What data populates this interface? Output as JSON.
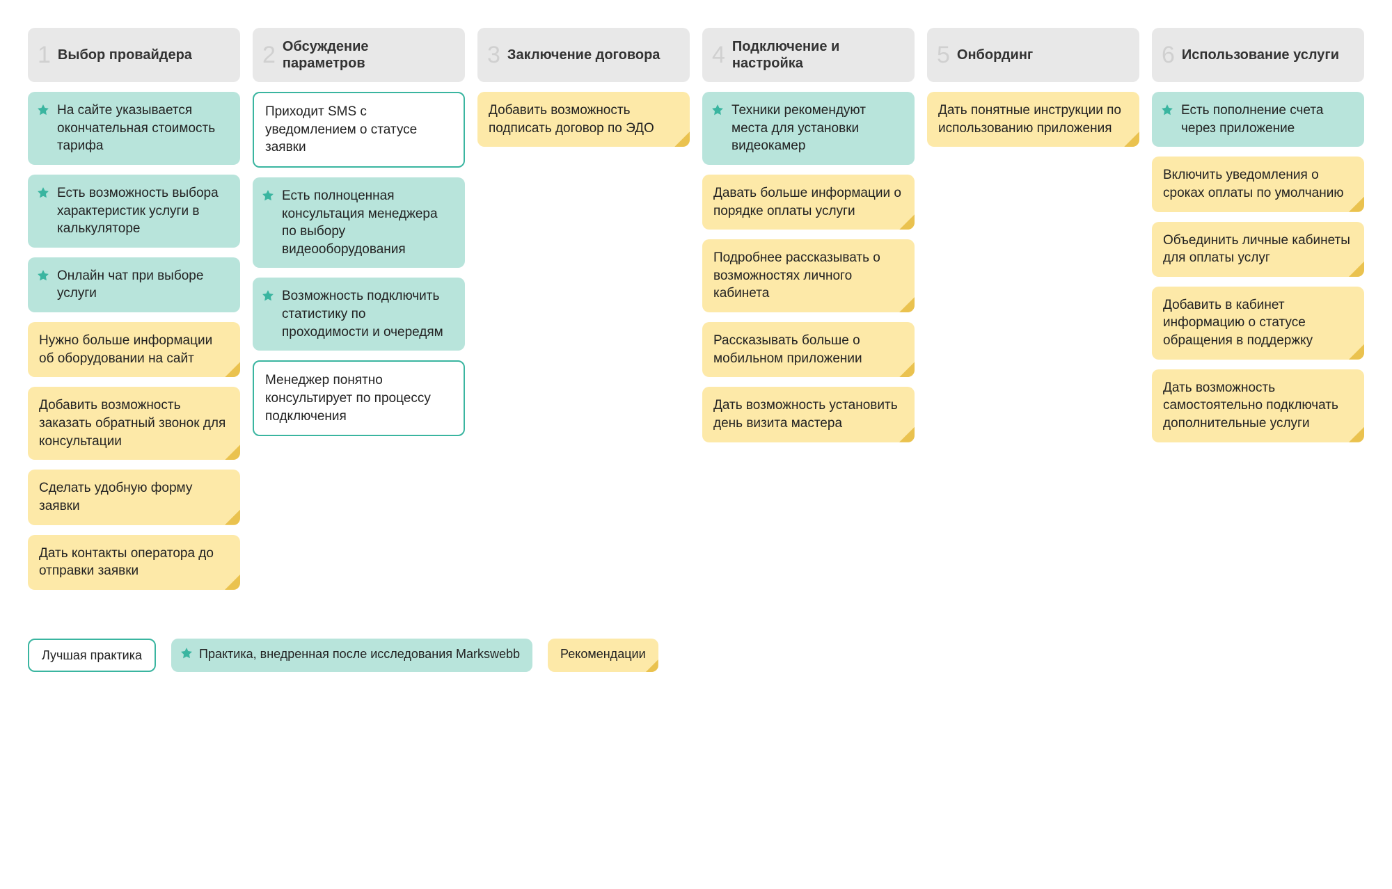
{
  "colors": {
    "header_bg": "#e8e8e8",
    "header_num": "#d0d0d0",
    "header_text": "#333333",
    "teal_bg": "#b8e4db",
    "teal_star": "#3ab5a0",
    "yellow_bg": "#fde9a8",
    "white_bg": "#ffffff",
    "teal_border": "#3ab5a0",
    "corner_fold": "#eac24f",
    "text": "#222222"
  },
  "card_types": {
    "teal": {
      "bg": "#b8e4db",
      "has_star": true,
      "border": null,
      "has_fold": false
    },
    "yellow": {
      "bg": "#fde9a8",
      "has_star": false,
      "border": null,
      "has_fold": true
    },
    "white": {
      "bg": "#ffffff",
      "has_star": false,
      "border": "#3ab5a0",
      "has_fold": false
    }
  },
  "columns": [
    {
      "num": "1",
      "title": "Выбор провайдера",
      "cards": [
        {
          "type": "teal",
          "text": "На сайте указывается окончательная стоимость тарифа"
        },
        {
          "type": "teal",
          "text": "Есть возможность выбора характеристик услуги в калькуляторе"
        },
        {
          "type": "teal",
          "text": "Онлайн чат при выборе услуги"
        },
        {
          "type": "yellow",
          "text": "Нужно больше информации об оборудовании на сайт"
        },
        {
          "type": "yellow",
          "text": "Добавить возможность заказать обратный звонок для консультации"
        },
        {
          "type": "yellow",
          "text": "Сделать удобную форму заявки"
        },
        {
          "type": "yellow",
          "text": "Дать контакты оператора до отправки заявки"
        }
      ]
    },
    {
      "num": "2",
      "title": "Обсуждение параметров",
      "cards": [
        {
          "type": "white",
          "text": "Приходит SMS с уведомлением о статусе заявки"
        },
        {
          "type": "teal",
          "text": "Есть полноценная консультация менеджера по выбору видеооборудования"
        },
        {
          "type": "teal",
          "text": "Возможность подключить статистику по проходимости и очередям"
        },
        {
          "type": "white",
          "text": "Менеджер понятно консультирует по процессу подключения"
        }
      ]
    },
    {
      "num": "3",
      "title": "Заключение договора",
      "cards": [
        {
          "type": "yellow",
          "text": "Добавить возможность подписать договор по ЭДО"
        }
      ]
    },
    {
      "num": "4",
      "title": "Подключение и настройка",
      "cards": [
        {
          "type": "teal",
          "text": "Техники рекомендуют места для установки видеокамер"
        },
        {
          "type": "yellow",
          "text": "Давать больше информации о порядке оплаты услуги"
        },
        {
          "type": "yellow",
          "text": "Подробнее рассказывать о возможностях личного кабинета"
        },
        {
          "type": "yellow",
          "text": "Рассказывать больше о мобильном приложении"
        },
        {
          "type": "yellow",
          "text": "Дать возможность установить день визита мастера"
        }
      ]
    },
    {
      "num": "5",
      "title": "Онбординг",
      "cards": [
        {
          "type": "yellow",
          "text": "Дать понятные инструкции по использованию приложения"
        }
      ]
    },
    {
      "num": "6",
      "title": "Использование услуги",
      "cards": [
        {
          "type": "teal",
          "text": "Есть пополнение счета через приложение"
        },
        {
          "type": "yellow",
          "text": "Включить уведомления о сроках оплаты по умолчанию"
        },
        {
          "type": "yellow",
          "text": "Объединить личные кабинеты для оплаты услуг"
        },
        {
          "type": "yellow",
          "text": "Добавить в кабинет информацию о статусе обращения в поддержку"
        },
        {
          "type": "yellow",
          "text": "Дать возможность самостоятельно подключать дополнительные услуги"
        }
      ]
    }
  ],
  "legend": [
    {
      "type": "white",
      "text": "Лучшая практика"
    },
    {
      "type": "teal",
      "text": "Практика, внедренная после исследования Markswebb"
    },
    {
      "type": "yellow",
      "text": "Рекомендации"
    }
  ]
}
